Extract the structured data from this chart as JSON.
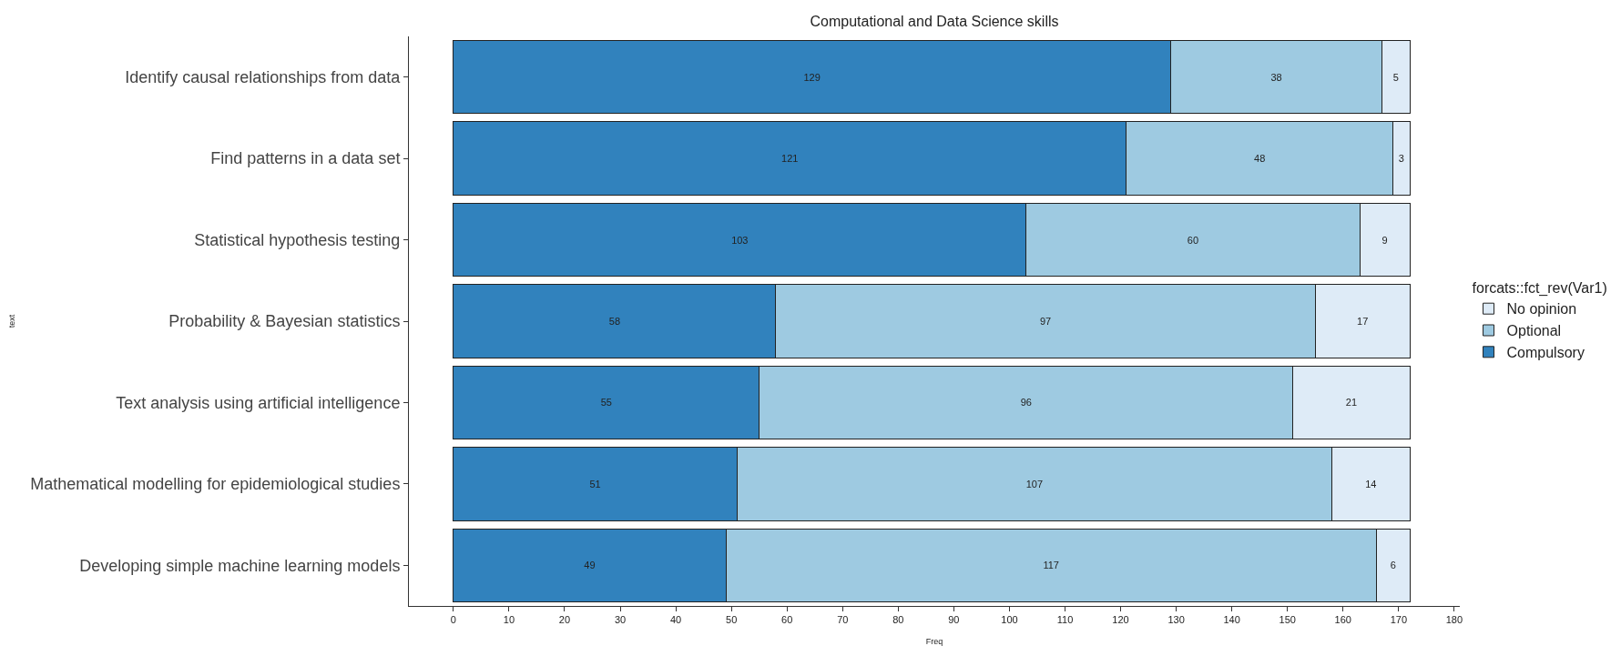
{
  "chart_data": {
    "type": "bar",
    "orientation": "horizontal",
    "stacked": true,
    "title": "Computational and Data Science skills",
    "xlabel": "Freq",
    "ylabel": "text",
    "legend_title": "forcats::fct_rev(Var1)",
    "categories": [
      "Identify causal relationships from data",
      "Find patterns in a data set",
      "Statistical hypothesis testing",
      "Probability & Bayesian statistics",
      "Text analysis using artificial intelligence",
      "Mathematical modelling for epidemiological studies",
      "Developing simple machine learning models"
    ],
    "series": [
      {
        "name": "Compulsory",
        "color": "#3182bd",
        "values": [
          129,
          121,
          103,
          58,
          55,
          51,
          49
        ]
      },
      {
        "name": "Optional",
        "color": "#9ecae1",
        "values": [
          38,
          48,
          60,
          97,
          96,
          107,
          117
        ]
      },
      {
        "name": "No opinion",
        "color": "#deebf7",
        "values": [
          5,
          3,
          9,
          17,
          21,
          14,
          6
        ]
      }
    ],
    "xlim": [
      -8,
      181
    ],
    "xticks": [
      0,
      10,
      20,
      30,
      40,
      50,
      60,
      70,
      80,
      90,
      100,
      110,
      120,
      130,
      140,
      150,
      160,
      170,
      180
    ],
    "data_labels": true,
    "legend": "right"
  }
}
